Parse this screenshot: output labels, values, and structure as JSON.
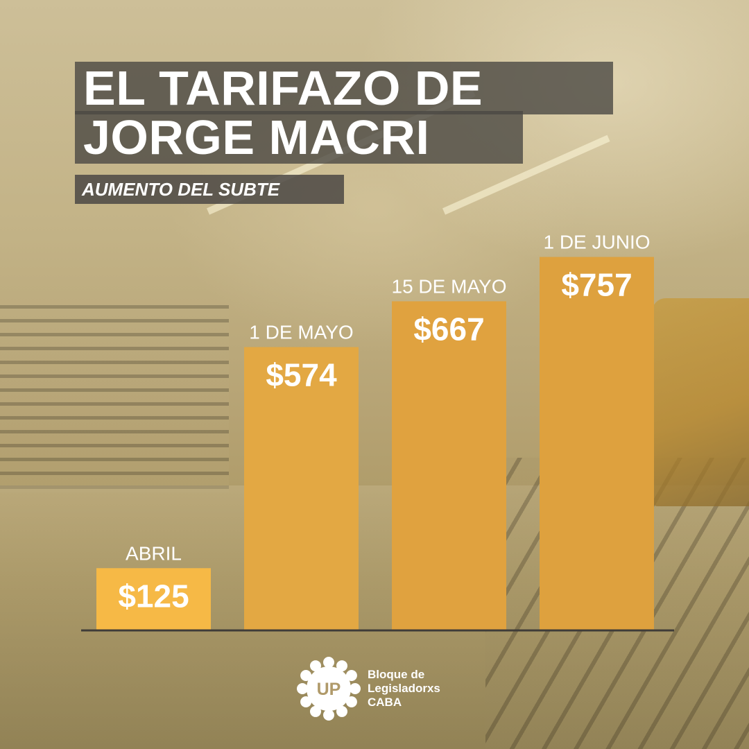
{
  "header": {
    "title_line1": "EL TARIFAZO DE",
    "title_line2": "JORGE MACRI",
    "subtitle": "AUMENTO DEL SUBTE"
  },
  "chart_data": {
    "type": "bar",
    "categories": [
      "ABRIL",
      "1 DE MAYO",
      "15 DE MAYO",
      "1 DE JUNIO"
    ],
    "values": [
      125,
      574,
      667,
      757
    ],
    "value_labels": [
      "$125",
      "$574",
      "$667",
      "$757"
    ],
    "ylim": [
      0,
      800
    ],
    "grid": false,
    "bar_colors": [
      "#f6b946",
      "#e3a843",
      "#e0a23f",
      "#dea13e"
    ],
    "axis_color": "#3f3c38"
  },
  "logo": {
    "badge_text": "UP",
    "line1": "Bloque de",
    "line2": "Legisladorxs",
    "line3": "CABA"
  }
}
